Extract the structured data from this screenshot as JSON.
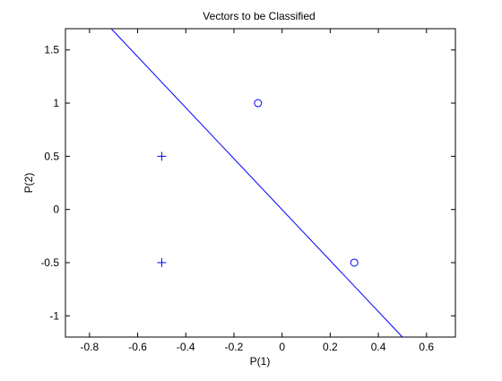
{
  "chart_data": {
    "type": "scatter",
    "title": "Vectors to be Classified",
    "xlabel": "P(1)",
    "ylabel": "P(2)",
    "xlim": [
      -0.9,
      0.72
    ],
    "ylim": [
      -1.2,
      1.7
    ],
    "xticks": [
      -0.8,
      -0.6,
      -0.4,
      -0.2,
      0,
      0.2,
      0.4,
      0.6
    ],
    "xtick_labels": [
      "-0.8",
      "-0.6",
      "-0.4",
      "-0.2",
      "0",
      "0.2",
      "0.4",
      "0.6"
    ],
    "yticks": [
      -1,
      -0.5,
      0,
      0.5,
      1,
      1.5
    ],
    "ytick_labels": [
      "-1",
      "-0.5",
      "0",
      "0.5",
      "1",
      "1.5"
    ],
    "grid": false,
    "color": "#0000ff",
    "series": [
      {
        "marker": "plus",
        "points": [
          [
            -0.5,
            0.5
          ],
          [
            -0.5,
            -0.5
          ]
        ]
      },
      {
        "marker": "circle",
        "points": [
          [
            -0.1,
            1.0
          ],
          [
            0.3,
            -0.5
          ]
        ]
      }
    ],
    "decision_line": {
      "points": [
        [
          -0.71,
          1.7
        ],
        [
          0.5,
          -1.2
        ]
      ]
    }
  }
}
